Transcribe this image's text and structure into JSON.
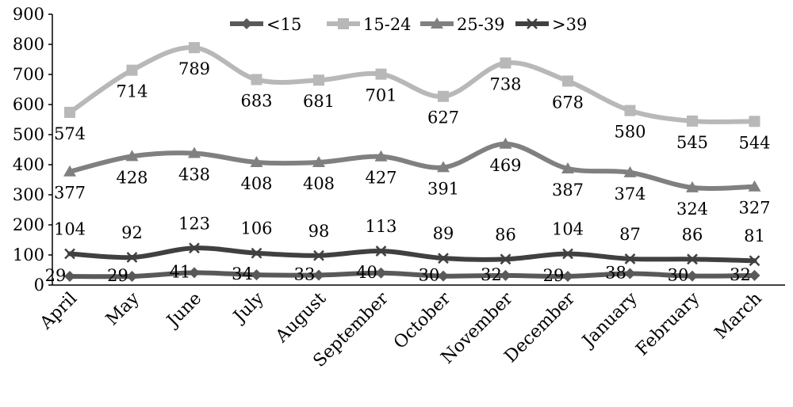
{
  "chart_data": {
    "type": "line",
    "categories": [
      "April",
      "May",
      "June",
      "July",
      "August",
      "September",
      "October",
      "November",
      "December",
      "January",
      "February",
      "March"
    ],
    "ylim": [
      0,
      900
    ],
    "yticks": [
      "0",
      "100",
      "200",
      "300",
      "400",
      "500",
      "600",
      "700",
      "800",
      "900"
    ],
    "grid": false,
    "legend_position": "top",
    "series": [
      {
        "name": "<15",
        "color": "#595959",
        "marker": "diamond",
        "values": [
          29,
          29,
          41,
          34,
          33,
          40,
          30,
          32,
          29,
          38,
          30,
          32
        ]
      },
      {
        "name": "15-24",
        "color": "#b8b8b8",
        "marker": "square",
        "values": [
          574,
          714,
          789,
          683,
          681,
          701,
          627,
          738,
          678,
          580,
          545,
          544
        ]
      },
      {
        "name": "25-39",
        "color": "#808080",
        "marker": "triangle",
        "values": [
          377,
          428,
          438,
          408,
          408,
          427,
          391,
          469,
          387,
          374,
          324,
          327
        ]
      },
      {
        "name": ">39",
        "color": "#404040",
        "marker": "x",
        "values": [
          104,
          92,
          123,
          106,
          98,
          113,
          89,
          86,
          104,
          87,
          86,
          81
        ]
      }
    ]
  }
}
